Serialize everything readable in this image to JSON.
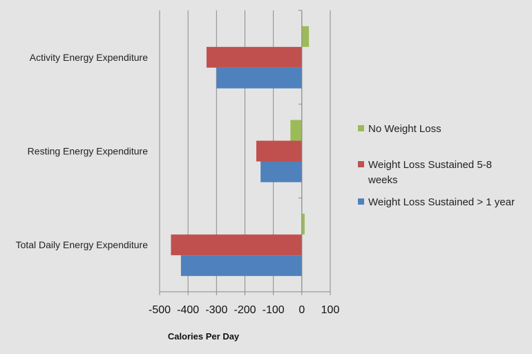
{
  "chart_data": {
    "type": "bar",
    "orientation": "horizontal",
    "categories": [
      "Activity Energy Expenditure",
      "Resting Energy Expenditure",
      "Total Daily Energy Expenditure"
    ],
    "series": [
      {
        "name": "No Weight Loss",
        "color": "#9bbb59",
        "values": [
          25,
          -40,
          10
        ]
      },
      {
        "name": "Weight Loss Sustained 5-8 weeks",
        "color": "#c0504d",
        "values": [
          -335,
          -160,
          -460
        ]
      },
      {
        "name": "Weight Loss Sustained > 1 year",
        "color": "#4f81bd",
        "values": [
          -300,
          -145,
          -425
        ]
      }
    ],
    "xlabel": "Calories Per Day",
    "ylabel": "",
    "xlim": [
      -500,
      100
    ],
    "xticks": [
      -500,
      -400,
      -300,
      -200,
      -100,
      0,
      100
    ],
    "xtick_labels": [
      "-500",
      "-400",
      "-300",
      "-200",
      "-100",
      "0",
      "100"
    ],
    "grid": "vertical",
    "legend_position": "right"
  },
  "legend": {
    "items": [
      {
        "lines": [
          "No Weight Loss"
        ]
      },
      {
        "lines": [
          "Weight Loss Sustained 5-8",
          "weeks"
        ]
      },
      {
        "lines": [
          "Weight Loss Sustained > 1 year"
        ]
      }
    ]
  }
}
